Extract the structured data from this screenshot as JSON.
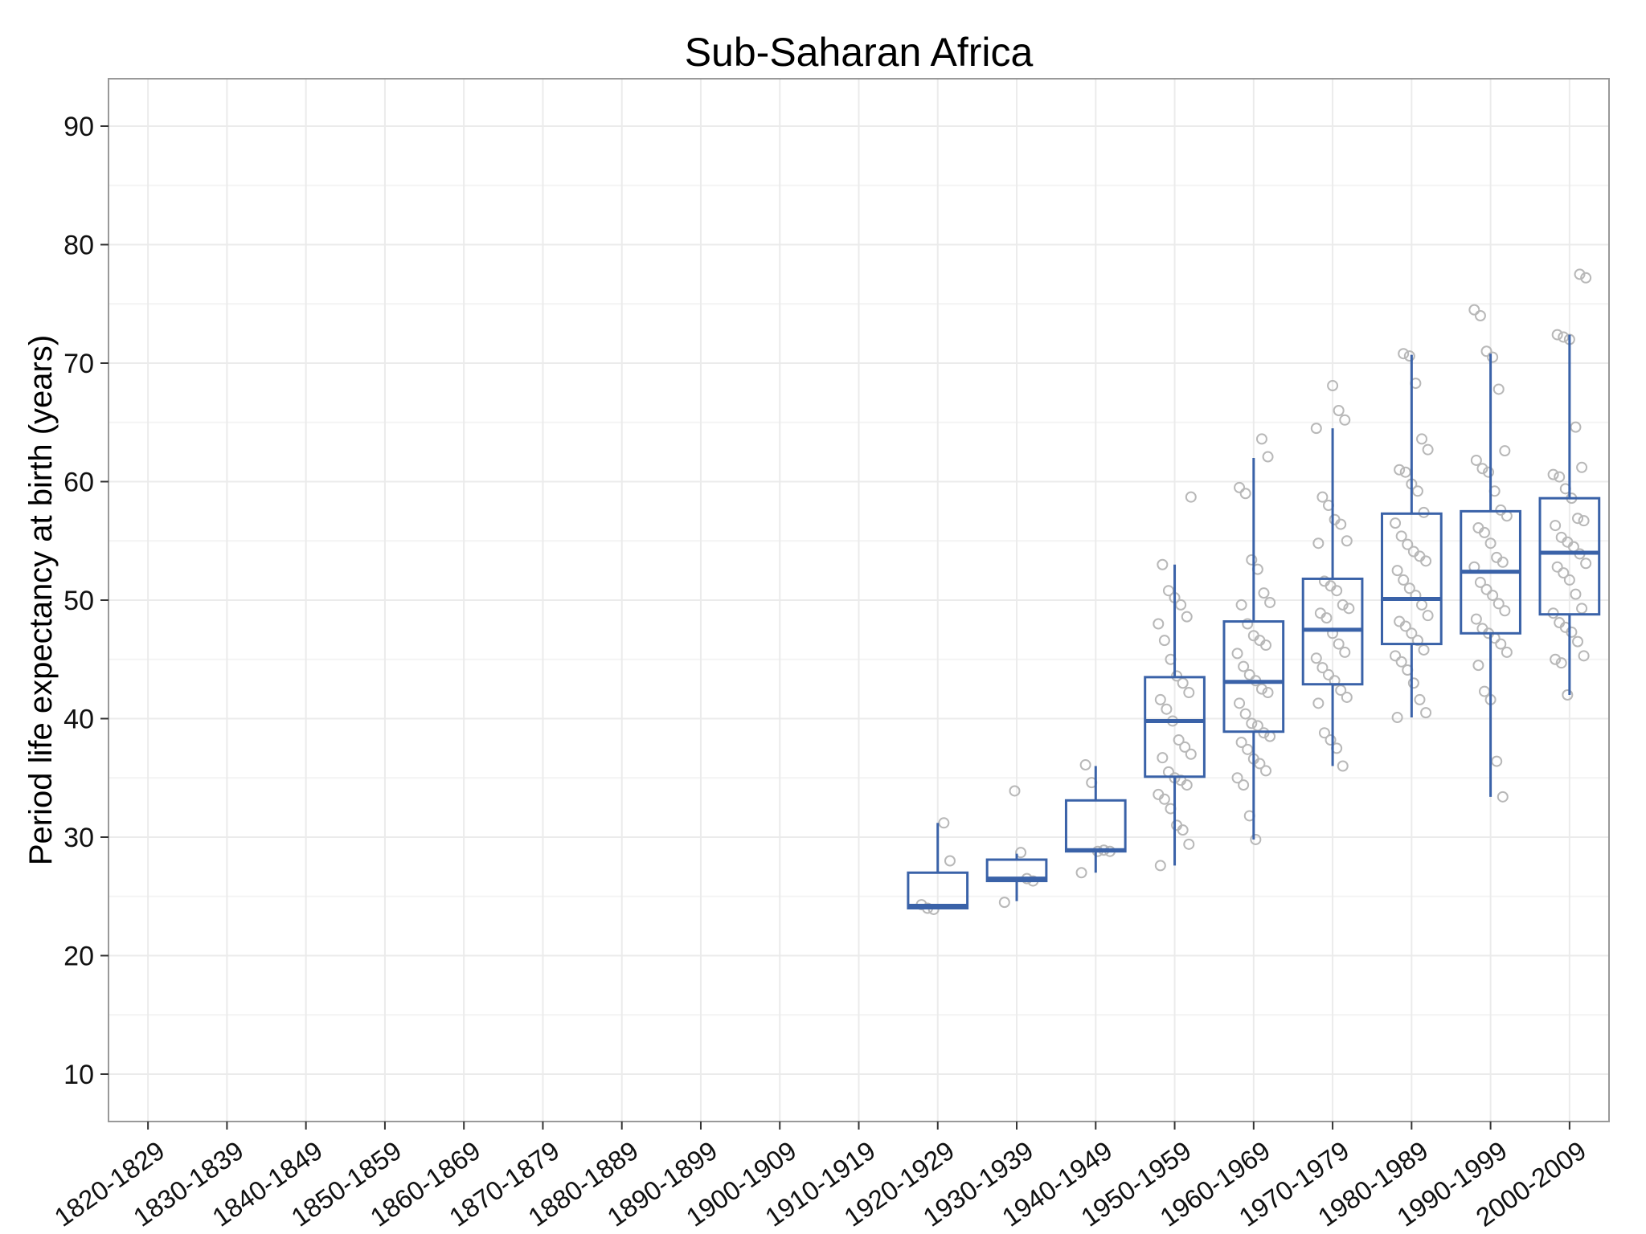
{
  "chart_data": {
    "type": "boxplot",
    "title": "Sub-Saharan Africa",
    "xlabel": "",
    "ylabel": "Period life expectancy at birth (years)",
    "ylim": [
      6,
      94
    ],
    "yticks": [
      10,
      20,
      30,
      40,
      50,
      60,
      70,
      80,
      90
    ],
    "grid": true,
    "categories": [
      "1820-1829",
      "1830-1839",
      "1840-1849",
      "1850-1859",
      "1860-1869",
      "1870-1879",
      "1880-1889",
      "1890-1899",
      "1900-1909",
      "1910-1919",
      "1920-1929",
      "1930-1939",
      "1940-1949",
      "1950-1959",
      "1960-1969",
      "1970-1979",
      "1980-1989",
      "1990-1999",
      "2000-2009"
    ],
    "colors": {
      "box": "#3a62a8",
      "point": "#b8b8b8",
      "grid": "#ebebeb",
      "frame": "#999999"
    },
    "boxes": [
      {
        "category": "1920-1929",
        "min": 24.0,
        "q1": 24.0,
        "median": 24.2,
        "q3": 27.0,
        "max": 31.2,
        "points": [
          31.2,
          28.0,
          24.3,
          24.0,
          23.9
        ]
      },
      {
        "category": "1930-1939",
        "min": 24.6,
        "q1": 26.3,
        "median": 26.5,
        "q3": 28.1,
        "max": 28.6,
        "points": [
          33.9,
          28.7,
          26.5,
          26.3,
          24.5
        ]
      },
      {
        "category": "1940-1949",
        "min": 27.0,
        "q1": 28.8,
        "median": 28.9,
        "q3": 33.1,
        "max": 36.0,
        "points": [
          36.1,
          34.6,
          28.8,
          28.9,
          28.8,
          27.0
        ]
      },
      {
        "category": "1950-1959",
        "min": 27.6,
        "q1": 35.1,
        "median": 39.8,
        "q3": 43.5,
        "max": 53.0,
        "points": [
          58.7,
          53.0,
          50.8,
          50.2,
          49.6,
          48.6,
          48.0,
          46.6,
          45.0,
          43.6,
          43.0,
          42.2,
          41.6,
          40.8,
          39.8,
          38.2,
          37.6,
          37.0,
          36.7,
          35.5,
          35.0,
          34.8,
          34.4,
          33.6,
          33.2,
          32.4,
          31.0,
          30.6,
          29.4,
          27.6
        ]
      },
      {
        "category": "1960-1969",
        "min": 29.8,
        "q1": 38.9,
        "median": 43.1,
        "q3": 48.2,
        "max": 62.0,
        "points": [
          63.6,
          62.1,
          59.5,
          59.0,
          53.4,
          52.6,
          50.6,
          49.8,
          49.6,
          48.0,
          47.0,
          46.6,
          46.2,
          45.5,
          44.4,
          43.7,
          43.2,
          42.5,
          42.2,
          41.3,
          40.4,
          39.6,
          39.4,
          38.8,
          38.5,
          38.0,
          37.4,
          36.6,
          36.2,
          35.6,
          35.0,
          34.4,
          31.8,
          29.8
        ]
      },
      {
        "category": "1970-1979",
        "min": 36.0,
        "q1": 42.9,
        "median": 47.5,
        "q3": 51.8,
        "max": 64.5,
        "points": [
          68.1,
          66.0,
          65.2,
          64.5,
          58.7,
          58.0,
          56.8,
          56.4,
          55.0,
          54.8,
          51.6,
          51.2,
          50.8,
          49.6,
          49.3,
          48.9,
          48.5,
          47.2,
          46.3,
          45.6,
          45.1,
          44.3,
          43.7,
          43.2,
          42.4,
          41.8,
          41.3,
          38.8,
          38.2,
          37.5,
          36.0
        ]
      },
      {
        "category": "1980-1989",
        "min": 40.1,
        "q1": 46.3,
        "median": 50.1,
        "q3": 57.3,
        "max": 70.7,
        "points": [
          70.8,
          70.6,
          68.3,
          63.6,
          62.7,
          61.0,
          60.8,
          59.8,
          59.2,
          57.4,
          56.5,
          55.4,
          54.7,
          54.1,
          53.7,
          53.3,
          52.5,
          51.7,
          51.0,
          50.4,
          49.6,
          48.7,
          48.2,
          47.8,
          47.2,
          46.6,
          45.8,
          45.3,
          44.8,
          44.1,
          43.0,
          41.6,
          40.5,
          40.1
        ]
      },
      {
        "category": "1990-1999",
        "min": 33.4,
        "q1": 47.2,
        "median": 52.4,
        "q3": 57.5,
        "max": 70.8,
        "points": [
          74.5,
          74.0,
          71.0,
          70.5,
          67.8,
          62.6,
          61.8,
          61.1,
          60.8,
          59.2,
          57.6,
          57.1,
          56.1,
          55.7,
          54.8,
          53.6,
          53.2,
          52.8,
          51.5,
          50.9,
          50.4,
          49.7,
          49.1,
          48.4,
          47.6,
          47.2,
          46.8,
          46.3,
          45.6,
          44.5,
          42.3,
          41.6,
          36.4,
          33.4
        ]
      },
      {
        "category": "2000-2009",
        "min": 42.0,
        "q1": 48.8,
        "median": 54.0,
        "q3": 58.6,
        "max": 72.4,
        "points": [
          77.5,
          77.2,
          72.4,
          72.2,
          72.0,
          64.6,
          61.2,
          60.6,
          60.4,
          59.4,
          58.6,
          56.9,
          56.7,
          56.3,
          55.3,
          54.9,
          54.5,
          53.9,
          53.1,
          52.8,
          52.3,
          51.7,
          50.5,
          49.3,
          48.9,
          48.1,
          47.7,
          47.3,
          46.5,
          45.3,
          45.0,
          44.7,
          42.0
        ]
      }
    ]
  }
}
